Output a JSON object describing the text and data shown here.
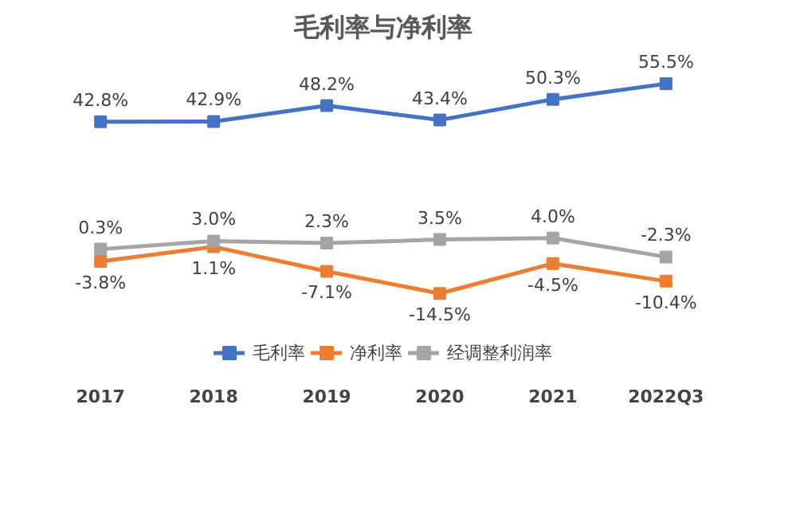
{
  "chart_data": {
    "type": "line",
    "title": "毛利率与净利率",
    "categories": [
      "2017",
      "2018",
      "2019",
      "2020",
      "2021",
      "2022Q3"
    ],
    "series": [
      {
        "name": "毛利率",
        "color": "#4472c4",
        "values": [
          42.8,
          42.9,
          48.2,
          43.4,
          50.3,
          55.5
        ],
        "value_labels": [
          "42.8%",
          "42.9%",
          "48.2%",
          "43.4%",
          "50.3%",
          "55.5%"
        ]
      },
      {
        "name": "净利率",
        "color": "#ed7d31",
        "values": [
          -3.8,
          1.1,
          -7.1,
          -14.5,
          -4.5,
          -10.4
        ],
        "value_labels": [
          "-3.8%",
          "1.1%",
          "-7.1%",
          "-14.5%",
          "-4.5%",
          "-10.4%"
        ]
      },
      {
        "name": "经调整利润率",
        "color": "#a5a5a5",
        "values": [
          0.3,
          3.0,
          2.3,
          3.5,
          4.0,
          -2.3
        ],
        "value_labels": [
          "0.3%",
          "3.0%",
          "2.3%",
          "3.5%",
          "4.0%",
          "-2.3%"
        ]
      }
    ],
    "marker": "square",
    "line_style": "solid",
    "legend": "bottom",
    "grid": false
  }
}
